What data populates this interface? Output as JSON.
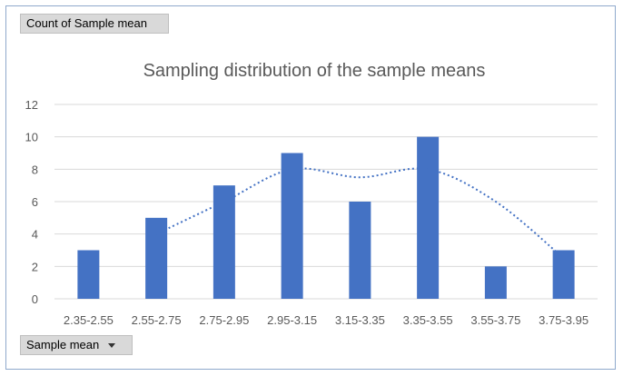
{
  "pivot": {
    "values_field": "Count of Sample mean",
    "axis_field": "Sample mean"
  },
  "colors": {
    "bar": "#4472c4",
    "trend": "#4472c4",
    "grid": "#d9d9d9",
    "axis_text": "#595959"
  },
  "chart_data": {
    "type": "bar",
    "title": "Sampling distribution of the sample means",
    "xlabel": "",
    "ylabel": "",
    "categories": [
      "2.35-2.55",
      "2.55-2.75",
      "2.75-2.95",
      "2.95-3.15",
      "3.15-3.35",
      "3.35-3.55",
      "3.55-3.75",
      "3.75-3.95"
    ],
    "values": [
      3,
      5,
      7,
      9,
      6,
      10,
      2,
      3
    ],
    "trendline": {
      "type": "moving-average",
      "period": 2,
      "values": [
        null,
        4,
        6,
        8,
        7.5,
        8,
        6,
        2.5
      ]
    },
    "ylim": [
      0,
      12
    ],
    "yticks": [
      0,
      2,
      4,
      6,
      8,
      10,
      12
    ],
    "grid": true,
    "legend": "none"
  }
}
